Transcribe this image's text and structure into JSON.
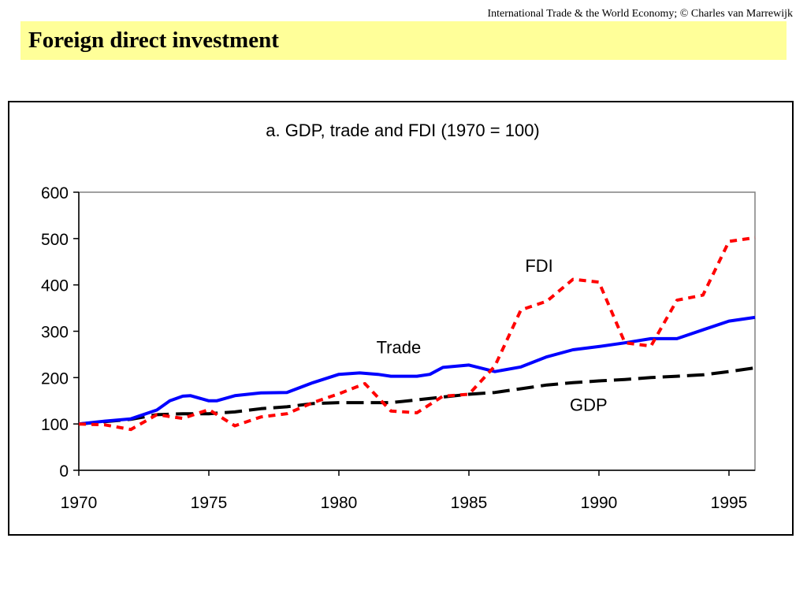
{
  "header": {
    "credit": "International Trade & the World Economy;  © Charles van Marrewijk",
    "title": "Foreign direct investment"
  },
  "chart_data": {
    "type": "line",
    "title": "a. GDP, trade and FDI (1970 = 100)",
    "xlabel": "",
    "ylabel": "",
    "xlim": [
      1970,
      1996
    ],
    "ylim": [
      0,
      600
    ],
    "x_ticks": [
      1970,
      1975,
      1980,
      1985,
      1990,
      1995
    ],
    "y_ticks": [
      0,
      100,
      200,
      300,
      400,
      500,
      600
    ],
    "grid": false,
    "legend": "none",
    "series": [
      {
        "name": "GDP",
        "color": "#000000",
        "style": "dashed",
        "x": [
          1970,
          1971,
          1972,
          1973,
          1974,
          1975,
          1976,
          1977,
          1978,
          1979,
          1980,
          1981,
          1982,
          1983,
          1984,
          1985,
          1986,
          1987,
          1988,
          1989,
          1990,
          1991,
          1992,
          1993,
          1994,
          1995,
          1996
        ],
        "values": [
          100,
          105,
          110,
          120,
          122,
          122,
          126,
          133,
          137,
          144,
          146,
          146,
          146,
          152,
          158,
          164,
          168,
          176,
          184,
          189,
          193,
          196,
          200,
          203,
          206,
          213,
          221
        ]
      },
      {
        "name": "Trade",
        "color": "#0000ff",
        "style": "solid",
        "x": [
          1970,
          1971,
          1972,
          1973,
          1973.5,
          1974,
          1974.3,
          1975,
          1975.3,
          1976,
          1977,
          1978,
          1979,
          1980,
          1980.8,
          1981.5,
          1982,
          1983,
          1983.5,
          1984,
          1985,
          1986,
          1987,
          1988,
          1989,
          1990,
          1991,
          1992,
          1993,
          1994,
          1995,
          1996
        ],
        "values": [
          100,
          106,
          111,
          130,
          150,
          160,
          161,
          150,
          150,
          161,
          167,
          168,
          189,
          207,
          210,
          207,
          203,
          203,
          207,
          222,
          227,
          213,
          223,
          245,
          260,
          267,
          275,
          284,
          284,
          303,
          322,
          330
        ]
      },
      {
        "name": "FDI",
        "color": "#ff0000",
        "style": "dotted",
        "x": [
          1970,
          1971,
          1972,
          1973,
          1974,
          1975,
          1976,
          1977,
          1978,
          1979,
          1980,
          1981,
          1982,
          1983,
          1984,
          1985,
          1986,
          1987,
          1988,
          1989,
          1990,
          1991,
          1992,
          1993,
          1994,
          1995,
          1996
        ],
        "values": [
          100,
          98,
          88,
          120,
          112,
          131,
          96,
          115,
          122,
          146,
          165,
          187,
          128,
          124,
          160,
          164,
          225,
          346,
          365,
          412,
          406,
          275,
          268,
          367,
          378,
          494,
          502
        ]
      }
    ],
    "annotations": [
      {
        "text": "FDI",
        "x": 1987.7,
        "y": 428
      },
      {
        "text": "Trade",
        "x": 1982.3,
        "y": 252
      },
      {
        "text": "GDP",
        "x": 1989.6,
        "y": 128
      }
    ]
  }
}
